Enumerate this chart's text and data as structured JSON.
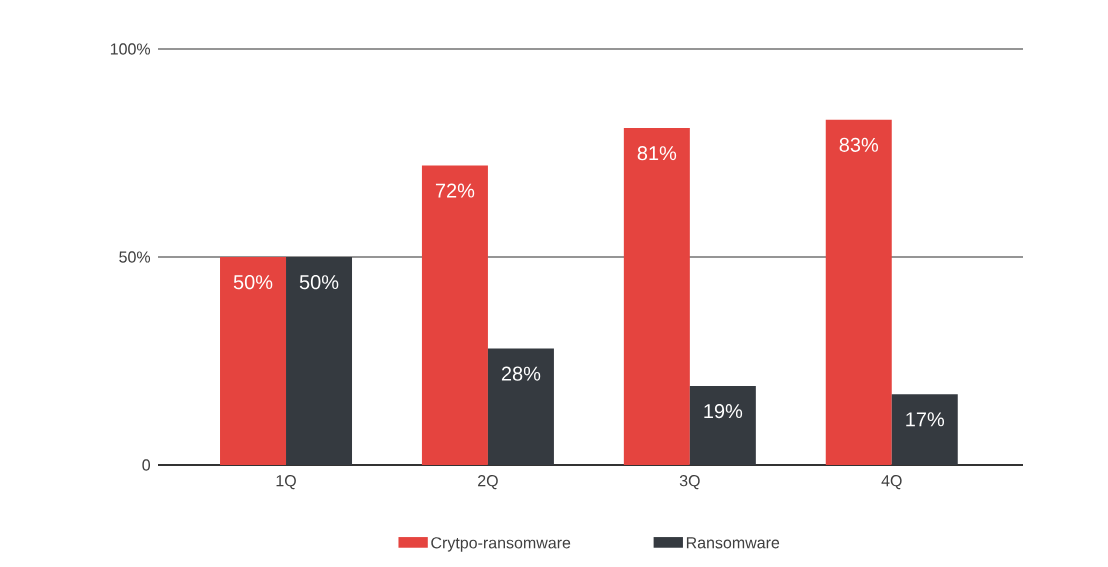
{
  "chart_data": {
    "type": "bar",
    "categories": [
      "1Q",
      "2Q",
      "3Q",
      "4Q"
    ],
    "series": [
      {
        "name": "Crytpo-ransomware",
        "color": "#e5443f",
        "values": [
          50,
          72,
          81,
          83
        ],
        "value_labels": [
          "50%",
          "72%",
          "81%",
          "83%"
        ]
      },
      {
        "name": "Ransomware",
        "color": "#353a40",
        "values": [
          50,
          28,
          19,
          17
        ],
        "value_labels": [
          "50%",
          "28%",
          "19%",
          "17%"
        ]
      }
    ],
    "ylim": [
      0,
      100
    ],
    "yticks": [
      0,
      {
        "value": 50,
        "label": "50%"
      },
      {
        "value": 100,
        "label": "100%"
      }
    ],
    "grid": "y",
    "legend": "bottom"
  }
}
